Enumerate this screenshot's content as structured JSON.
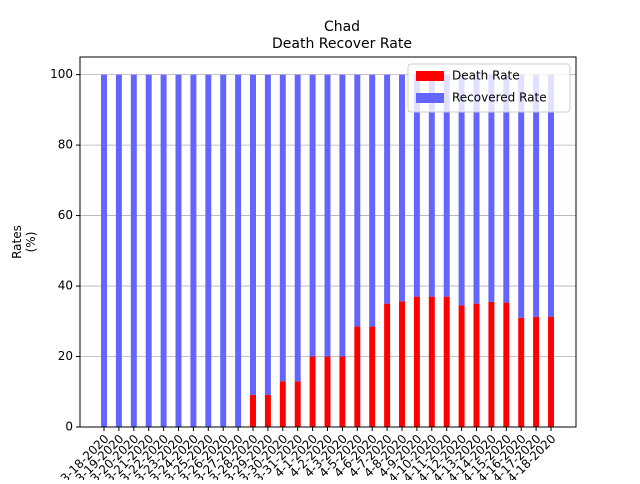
{
  "chart_data": {
    "type": "stacked_bar",
    "title": "Chad",
    "subtitle": "Death Recover Rate",
    "ylabel": "Rates\n(%)",
    "categories": [
      "3-18-2020",
      "3-19-2020",
      "3-20-2020",
      "3-21-2020",
      "3-22-2020",
      "3-23-2020",
      "3-24-2020",
      "3-25-2020",
      "3-26-2020",
      "3-27-2020",
      "3-28-2020",
      "3-29-2020",
      "3-30-2020",
      "3-31-2020",
      "4-1-2020",
      "4-2-2020",
      "4-3-2020",
      "4-5-2020",
      "4-6-2020",
      "4-7-2020",
      "4-8-2020",
      "4-9-2020",
      "4-10-2020",
      "4-11-2020",
      "4-12-2020",
      "4-13-2020",
      "4-14-2020",
      "4-15-2020",
      "4-16-2020",
      "4-17-2020",
      "4-18-2020"
    ],
    "series": [
      {
        "name": "Death Rate",
        "color": "#ff0000",
        "values": [
          0,
          0,
          0,
          0,
          0,
          0,
          0,
          0,
          0,
          0,
          9.1,
          9.1,
          13,
          13,
          20,
          20,
          20,
          28.5,
          28.5,
          35,
          35.7,
          37,
          37,
          37,
          34.5,
          35,
          35.5,
          35.3,
          31,
          31.3,
          31.3
        ]
      },
      {
        "name": "Recovered Rate",
        "color": "#6464ff",
        "values": [
          100,
          100,
          100,
          100,
          100,
          100,
          100,
          100,
          100,
          100,
          90.9,
          90.9,
          87,
          87,
          80,
          80,
          80,
          71.5,
          71.5,
          65,
          64.3,
          63,
          63,
          63,
          65.5,
          65,
          64.5,
          64.7,
          69,
          68.7,
          68.7
        ]
      }
    ],
    "ylim": [
      0,
      105
    ],
    "yticks": [
      0,
      20,
      40,
      60,
      80,
      100
    ],
    "grid": true,
    "legend": "upper right"
  }
}
